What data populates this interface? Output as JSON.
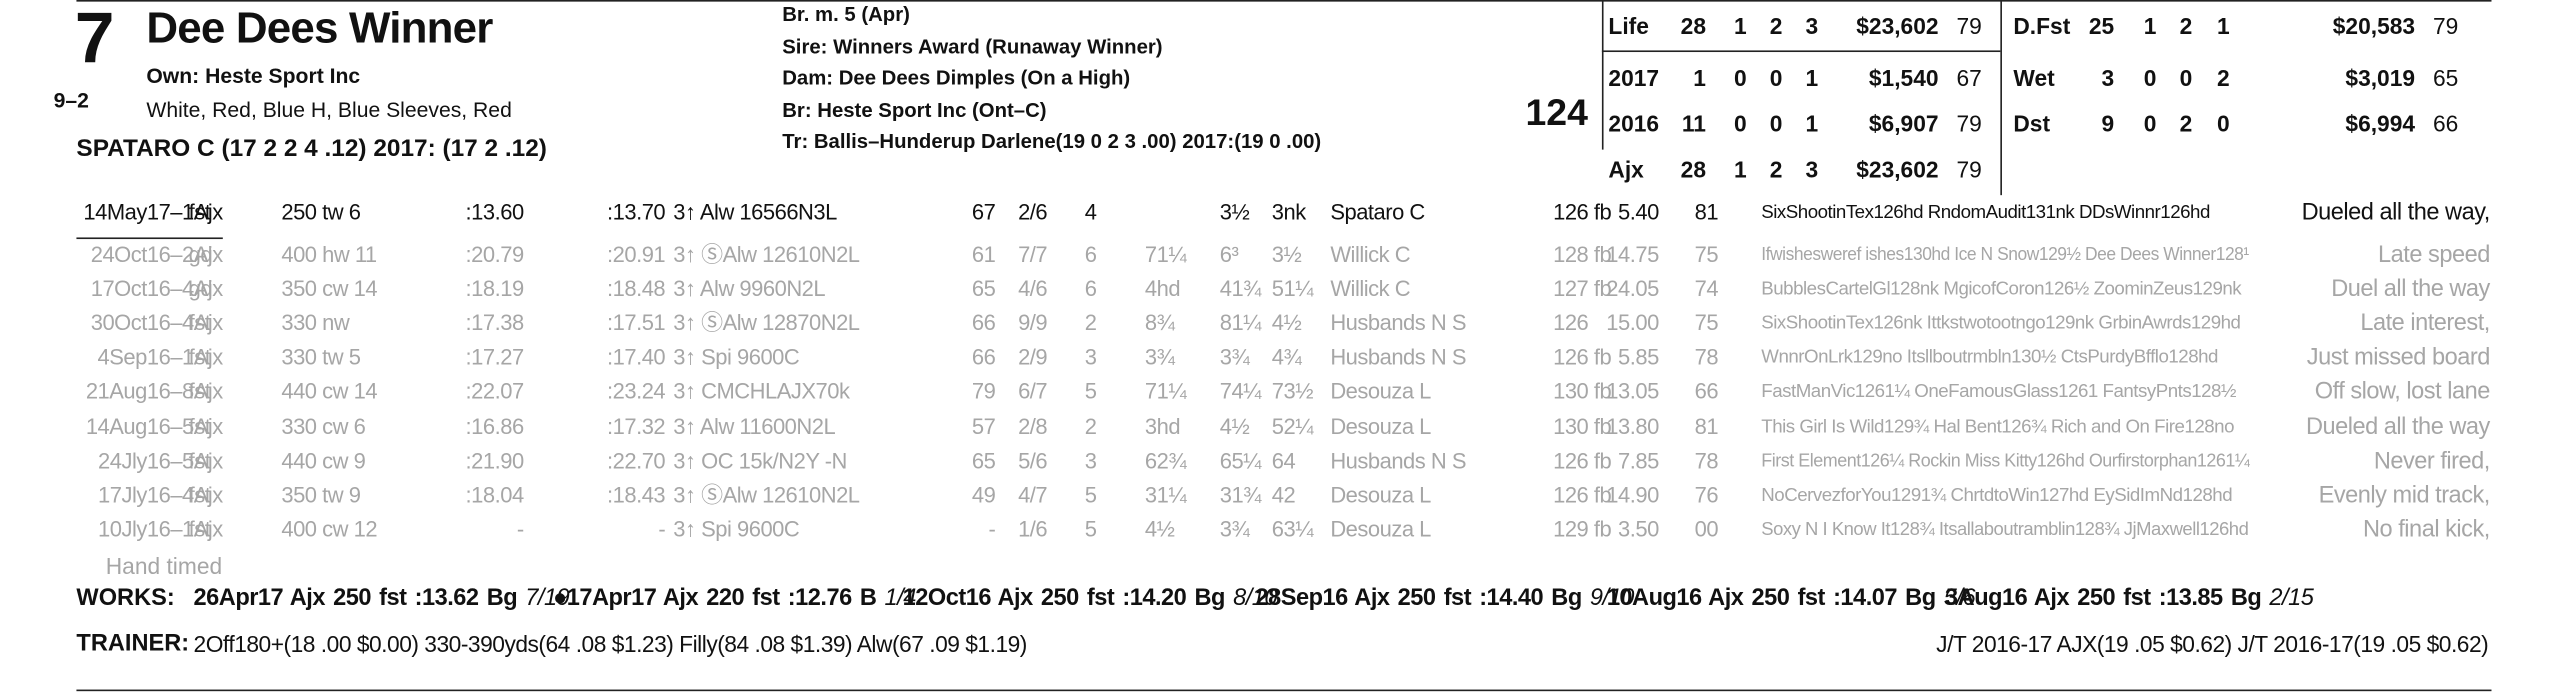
{
  "header": {
    "program_number": "7",
    "morning_line": "9–2",
    "horse_name": "Dee Dees Winner",
    "owner": "Own: Heste Sport Inc",
    "silks": "White, Red, Blue H, Blue Sleeves, Red",
    "jockey": "SPATARO C (17 2 2 4 .12) 2017: (17 2 .12)"
  },
  "breeding": [
    "Br. m. 5 (Apr)",
    "Sire: Winners Award (Runaway Winner)",
    "Dam: Dee Dees Dimples (On a High)",
    "Br:   Heste Sport Inc (Ont–C)",
    "Tr:    Ballis–Hunderup Darlene(19 0 2 3 .00)  2017:(19 0 .00)"
  ],
  "rating": "124",
  "record": [
    [
      "Life",
      "28",
      "1",
      "2",
      "3",
      "$23,602",
      "79"
    ],
    [
      "2017",
      "1",
      "0",
      "0",
      "1",
      "$1,540",
      "67"
    ],
    [
      "2016",
      "11",
      "0",
      "0",
      "1",
      "$6,907",
      "79"
    ],
    [
      "Ajx",
      "28",
      "1",
      "2",
      "3",
      "$23,602",
      "79"
    ]
  ],
  "surface_record": [
    [
      "D.Fst",
      "25",
      "1",
      "2",
      "1",
      "$20,583",
      "79"
    ],
    [
      "Wet",
      "3",
      "0",
      "0",
      "2",
      "$3,019",
      "65"
    ],
    [
      "Dst",
      "9",
      "0",
      "2",
      "0",
      "$6,994",
      "66"
    ]
  ],
  "past_performances": [
    [
      "14May17–1Ajx",
      "fst",
      "250 tw 6",
      ":13.60",
      ":13.70",
      "3↑ Alw 16566N3L",
      "67",
      "2/6",
      "4",
      "",
      "3½",
      "3nk",
      "Spataro C",
      "126 fb",
      "5.40",
      "81",
      "SixShootinTex126hd RndomAudit131nk DDsWinnr126hd",
      "Dueled all the way,"
    ],
    [
      "24Oct16–2Ajx",
      "gd",
      "400 hw 11",
      ":20.79",
      ":20.91",
      "3↑ ⓈAlw 12610N2L",
      "61",
      "7/7",
      "6",
      "71¼",
      "6³",
      "3½",
      "Willick C",
      "128 fb",
      "14.75",
      "75",
      "Ifwishesweref ishes130hd Ice N Snow129½ Dee Dees Winner128¹",
      "Late speed"
    ],
    [
      "17Oct16–4Ajx",
      "gd",
      "350 cw 14",
      ":18.19",
      ":18.48",
      "3↑ Alw 9960N2L",
      "65",
      "4/6",
      "6",
      "4hd",
      "41¾",
      "51¼",
      "Willick C",
      "127 fb",
      "24.05",
      "74",
      "BubblesCartelGl128nk MgicofCoron126½ ZoominZeus129nk",
      "Duel all the way"
    ],
    [
      "30Oct16–4Ajx",
      "fst",
      "330 nw",
      ":17.38",
      ":17.51",
      "3↑ ⓈAlw 12870N2L",
      "66",
      "9/9",
      "2",
      "8¾",
      "81¼",
      "4½",
      "Husbands N S",
      "126",
      "15.00",
      "75",
      "SixShootinTex126nk Ittkstwotootngo129nk GrbinAwrds129hd",
      "Late interest,"
    ],
    [
      "4Sep16–1Ajx",
      "fst",
      "330 tw 5",
      ":17.27",
      ":17.40",
      "3↑ Spi 9600C",
      "66",
      "2/9",
      "3",
      "3¾",
      "3¾",
      "4¾",
      "Husbands N S",
      "126 fb",
      "5.85",
      "78",
      "WnnrOnLrk129no Itsllboutrmbln130½ CtsPurdyBfflo128hd",
      "Just missed board"
    ],
    [
      "21Aug16–8Ajx",
      "fst",
      "440 cw 14",
      ":22.07",
      ":23.24",
      "3↑ CMCHLAJX70k",
      "79",
      "6/7",
      "5",
      "71¼",
      "74¼",
      "73½",
      "Desouza L",
      "130 fb",
      "13.05",
      "66",
      "FastManVic1261¼ OneFamousGlass1261 FantsyPnts128½",
      "Off slow, lost lane"
    ],
    [
      "14Aug16–5Ajx",
      "fst",
      "330 cw 6",
      ":16.86",
      ":17.32",
      "3↑ Alw 11600N2L",
      "57",
      "2/8",
      "2",
      "3hd",
      "4½",
      "52¼",
      "Desouza L",
      "130 fb",
      "13.80",
      "81",
      "This Girl Is Wild129¾ Hal Bent126¾ Rich and On Fire128no",
      "Dueled all the way"
    ],
    [
      "24Jly16–5Ajx",
      "fst",
      "440 cw 9",
      ":21.90",
      ":22.70",
      "3↑ OC 15k/N2Y -N",
      "65",
      "5/6",
      "3",
      "62¾",
      "65¼",
      "64",
      "Husbands N S",
      "126 fb",
      "7.85",
      "78",
      "First Element126¼ Rockin Miss Kitty126hd Ourfirstorphan1261¼",
      "Never fired,"
    ],
    [
      "17Jly16–4Ajx",
      "fst",
      "350 tw 9",
      ":18.04",
      ":18.43",
      "3↑ ⓈAlw 12610N2L",
      "49",
      "4/7",
      "5",
      "31¼",
      "31¾",
      "42",
      "Desouza L",
      "126 fb",
      "14.90",
      "76",
      "NoCervezforYou1291¾ ChrtdtoWin127hd EySidImNd128hd",
      "Evenly mid track,"
    ],
    [
      "10Jly16–1Ajx",
      "fst",
      "400 cw 12",
      "-",
      "-",
      "3↑ Spi 9600C",
      "-",
      "1/6",
      "5",
      "4½",
      "3¾",
      "63¼",
      "Desouza L",
      "129 fb",
      "3.50",
      "00",
      "Soxy N I Know It128¾ Itsallaboutramblin128¾ JjMaxwell126hd",
      "No final kick,"
    ]
  ],
  "timing_note": "Hand timed",
  "works": {
    "label": "WORKS:",
    "items": [
      [
        "26Apr17",
        "Ajx",
        "250",
        "fst",
        ":13.62",
        "Bg",
        "7/19"
      ],
      [
        "●17Apr17",
        "Ajx",
        "220",
        "fst",
        ":12.76",
        "B",
        "1/4"
      ],
      [
        "12Oct16",
        "Ajx",
        "250",
        "fst",
        ":14.20",
        "Bg",
        "8/10"
      ],
      [
        "28Sep16",
        "Ajx",
        "250",
        "fst",
        ":14.40",
        "Bg",
        "9/10"
      ],
      [
        "10Aug16",
        "Ajx",
        "250",
        "fst",
        ":14.07",
        "Bg",
        "5/6"
      ],
      [
        "3Aug16",
        "Ajx",
        "250",
        "fst",
        ":13.85",
        "Bg",
        "2/15"
      ]
    ]
  },
  "trainer": {
    "label": "TRAINER:",
    "stats": "2Off180+(18 .00 $0.00) 330-390yds(64 .08 $1.23) Filly(84 .08 $1.39) Alw(67 .09 $1.19)",
    "jockey_trainer": "J/T 2016-17 AJX(19 .05 $0.62)  J/T 2016-17(19 .05 $0.62)"
  }
}
